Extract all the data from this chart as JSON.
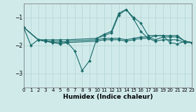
{
  "title": "",
  "xlabel": "Humidex (Indice chaleur)",
  "ylabel": "",
  "bg_color": "#d0eaea",
  "line_color": "#1a6b6b",
  "grid_color": "#b8d8d8",
  "xlim": [
    0,
    23
  ],
  "ylim": [
    -3.5,
    -0.5
  ],
  "yticks": [
    -3,
    -2,
    -1
  ],
  "xticks": [
    0,
    1,
    2,
    3,
    4,
    5,
    6,
    7,
    8,
    9,
    10,
    11,
    12,
    13,
    14,
    15,
    16,
    17,
    18,
    19,
    20,
    21,
    22,
    23
  ],
  "lines": [
    {
      "x": [
        0,
        1,
        2,
        3,
        4,
        5,
        6,
        7,
        8,
        9,
        10,
        11,
        12,
        13,
        14,
        15,
        16,
        17,
        18,
        19,
        20,
        21,
        22,
        23
      ],
      "y": [
        -1.35,
        -2.0,
        -1.8,
        -1.85,
        -1.85,
        -1.85,
        -1.9,
        -2.2,
        -2.9,
        -2.55,
        -1.75,
        -1.6,
        -1.5,
        -0.85,
        -0.72,
        -1.05,
        -1.5,
        -1.75,
        -1.65,
        -1.65,
        -1.9,
        -1.95,
        -1.85,
        -1.9
      ]
    },
    {
      "x": [
        0,
        2,
        3,
        4,
        5,
        6,
        10,
        11,
        12,
        13,
        14,
        15,
        16,
        17,
        18,
        19,
        20,
        21,
        22,
        23
      ],
      "y": [
        -1.35,
        -1.8,
        -1.8,
        -1.8,
        -1.8,
        -1.8,
        -1.75,
        -1.65,
        -1.55,
        -0.92,
        -0.72,
        -1.0,
        -1.2,
        -1.65,
        -1.65,
        -1.65,
        -1.65,
        -1.65,
        -1.85,
        -1.9
      ]
    },
    {
      "x": [
        0,
        2,
        3,
        4,
        5,
        6,
        10,
        11,
        12,
        13,
        14,
        15,
        16,
        17,
        18,
        19,
        20,
        21,
        22,
        23
      ],
      "y": [
        -1.35,
        -1.8,
        -1.85,
        -1.9,
        -1.9,
        -1.85,
        -1.8,
        -1.75,
        -1.75,
        -1.75,
        -1.8,
        -1.75,
        -1.7,
        -1.7,
        -1.8,
        -1.7,
        -1.7,
        -1.7,
        -1.85,
        -1.9
      ]
    },
    {
      "x": [
        0,
        2,
        3,
        4,
        5,
        6,
        10,
        11,
        12,
        13,
        14,
        15,
        16,
        17,
        18,
        19,
        20,
        21,
        22,
        23
      ],
      "y": [
        -1.35,
        -1.8,
        -1.85,
        -1.9,
        -1.95,
        -1.9,
        -1.85,
        -1.8,
        -1.8,
        -1.8,
        -1.85,
        -1.8,
        -1.75,
        -1.75,
        -1.85,
        -1.8,
        -1.8,
        -1.8,
        -1.9,
        -1.9
      ]
    }
  ]
}
